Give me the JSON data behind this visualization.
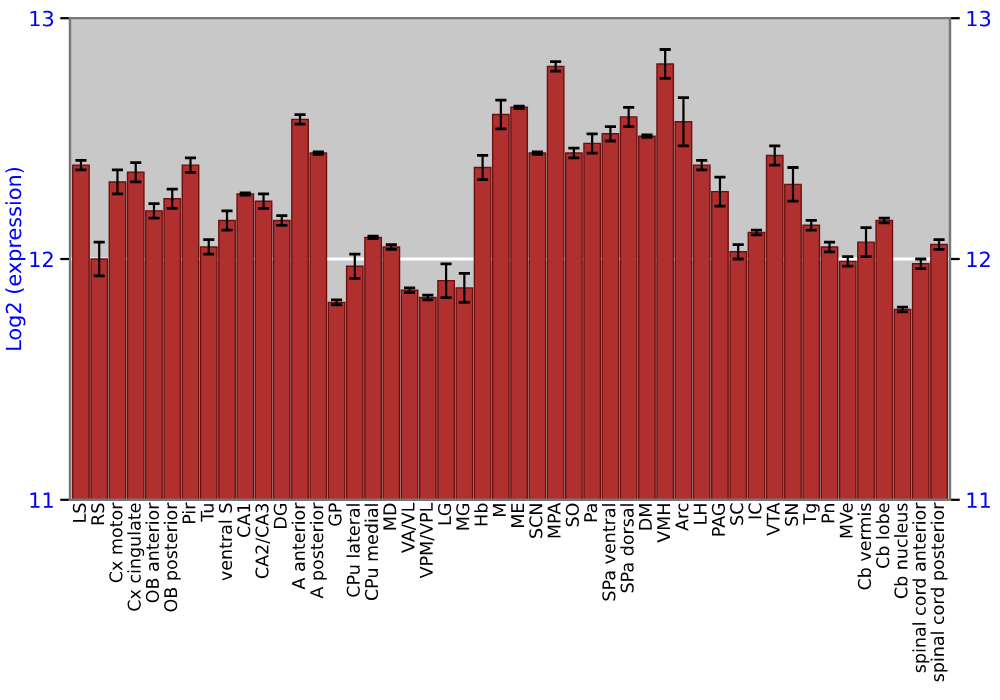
{
  "chart_data": {
    "type": "bar",
    "ylabel": "Log2 (expression)",
    "categories": [
      "LS",
      "RS",
      "Cx motor",
      "Cx cingulate",
      "OB anterior",
      "OB posterior",
      "Pir",
      "Tu",
      "ventral S",
      "CA1",
      "CA2/CA3",
      "DG",
      "A anterior",
      "A posterior",
      "GP",
      "CPu lateral",
      "CPu medial",
      "MD",
      "VA/VL",
      "VPM/VPL",
      "LG",
      "MG",
      "Hb",
      "M",
      "ME",
      "SCN",
      "MPA",
      "SO",
      "Pa",
      "SPa ventral",
      "SPa dorsal",
      "DM",
      "VMH",
      "Arc",
      "LH",
      "PAG",
      "SC",
      "IC",
      "VTA",
      "SN",
      "Tg",
      "Pn",
      "MVe",
      "Cb vermis",
      "Cb lobe",
      "Cb nucleus",
      "spinal cord anterior",
      "spinal cord posterior"
    ],
    "values": [
      12.39,
      12.0,
      12.32,
      12.36,
      12.2,
      12.25,
      12.39,
      12.05,
      12.16,
      12.27,
      12.24,
      12.16,
      12.58,
      12.44,
      11.82,
      11.97,
      12.09,
      12.05,
      11.87,
      11.84,
      11.91,
      11.88,
      12.38,
      12.6,
      12.63,
      12.44,
      12.8,
      12.44,
      12.48,
      12.52,
      12.59,
      12.51,
      12.81,
      12.57,
      12.39,
      12.28,
      12.03,
      12.11,
      12.43,
      12.31,
      12.14,
      12.05,
      11.99,
      12.07,
      12.16,
      11.79,
      11.98,
      12.06
    ],
    "errors": [
      0.02,
      0.07,
      0.05,
      0.04,
      0.03,
      0.04,
      0.03,
      0.03,
      0.04,
      0.005,
      0.03,
      0.02,
      0.02,
      0.005,
      0.01,
      0.05,
      0.005,
      0.01,
      0.01,
      0.01,
      0.07,
      0.06,
      0.05,
      0.06,
      0.005,
      0.005,
      0.02,
      0.02,
      0.04,
      0.03,
      0.04,
      0.005,
      0.06,
      0.1,
      0.02,
      0.06,
      0.03,
      0.01,
      0.04,
      0.07,
      0.02,
      0.02,
      0.02,
      0.06,
      0.01,
      0.01,
      0.02,
      0.02
    ],
    "color": "#b03030",
    "ylim": [
      11,
      13
    ],
    "yticks": [
      11,
      12,
      13
    ],
    "y2lim": [
      11,
      13
    ],
    "y2ticks": [
      11,
      12,
      13
    ],
    "grid": "y"
  }
}
